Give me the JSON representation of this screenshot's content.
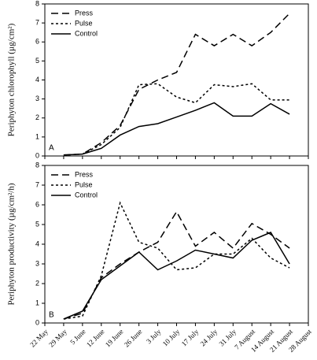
{
  "chart_data": [
    {
      "type": "line",
      "panel_label": "A",
      "ylabel": "Periphyton chlorophyll (µg/cm²)",
      "ylim": [
        0,
        8
      ],
      "yticks": [
        0,
        1,
        2,
        3,
        4,
        5,
        6,
        7,
        8
      ],
      "legend": "upper left",
      "series": [
        {
          "name": "Press",
          "color": "#000000",
          "dash": "dashed",
          "values": [
            null,
            0.05,
            0.1,
            0.7,
            1.6,
            3.5,
            4.0,
            4.4,
            6.4,
            5.8,
            6.4,
            5.8,
            6.5,
            7.5,
            null
          ]
        },
        {
          "name": "Pulse",
          "color": "#000000",
          "dash": "dotted",
          "values": [
            null,
            0.05,
            0.1,
            0.6,
            1.5,
            3.75,
            3.8,
            3.1,
            2.8,
            3.75,
            3.65,
            3.8,
            2.95,
            2.95,
            null
          ]
        },
        {
          "name": "Control",
          "color": "#000000",
          "dash": "solid",
          "values": [
            null,
            0.05,
            0.1,
            0.4,
            1.1,
            1.55,
            1.7,
            2.05,
            2.4,
            2.8,
            2.1,
            2.1,
            2.75,
            2.2,
            null
          ]
        }
      ]
    },
    {
      "type": "line",
      "panel_label": "B",
      "ylabel": "Periphyton productivity (µg/cm²/h)",
      "ylim": [
        0,
        8
      ],
      "yticks": [
        0,
        1,
        2,
        3,
        4,
        5,
        6,
        7,
        8
      ],
      "legend": "upper left",
      "categories": [
        "22 May",
        "29 May",
        "5 June",
        "12 June",
        "19 June",
        "26 June",
        "3 July",
        "10 July",
        "17 July",
        "24 July",
        "31 July",
        "7 August",
        "14 August",
        "21 August",
        "28 August"
      ],
      "series": [
        {
          "name": "Press",
          "color": "#000000",
          "dash": "dashed",
          "values": [
            null,
            0.2,
            0.5,
            2.3,
            3.0,
            3.6,
            4.1,
            5.65,
            3.9,
            4.6,
            3.8,
            5.05,
            4.5,
            3.8,
            null
          ]
        },
        {
          "name": "Pulse",
          "color": "#000000",
          "dash": "dotted",
          "values": [
            null,
            0.2,
            0.35,
            2.4,
            6.1,
            4.1,
            3.8,
            2.7,
            2.8,
            3.5,
            3.5,
            4.3,
            3.3,
            2.8,
            null
          ]
        },
        {
          "name": "Control",
          "color": "#000000",
          "dash": "solid",
          "values": [
            null,
            0.2,
            0.6,
            2.2,
            2.9,
            3.6,
            2.7,
            3.15,
            3.7,
            3.5,
            3.3,
            4.2,
            4.6,
            3.0,
            null
          ]
        }
      ]
    }
  ]
}
